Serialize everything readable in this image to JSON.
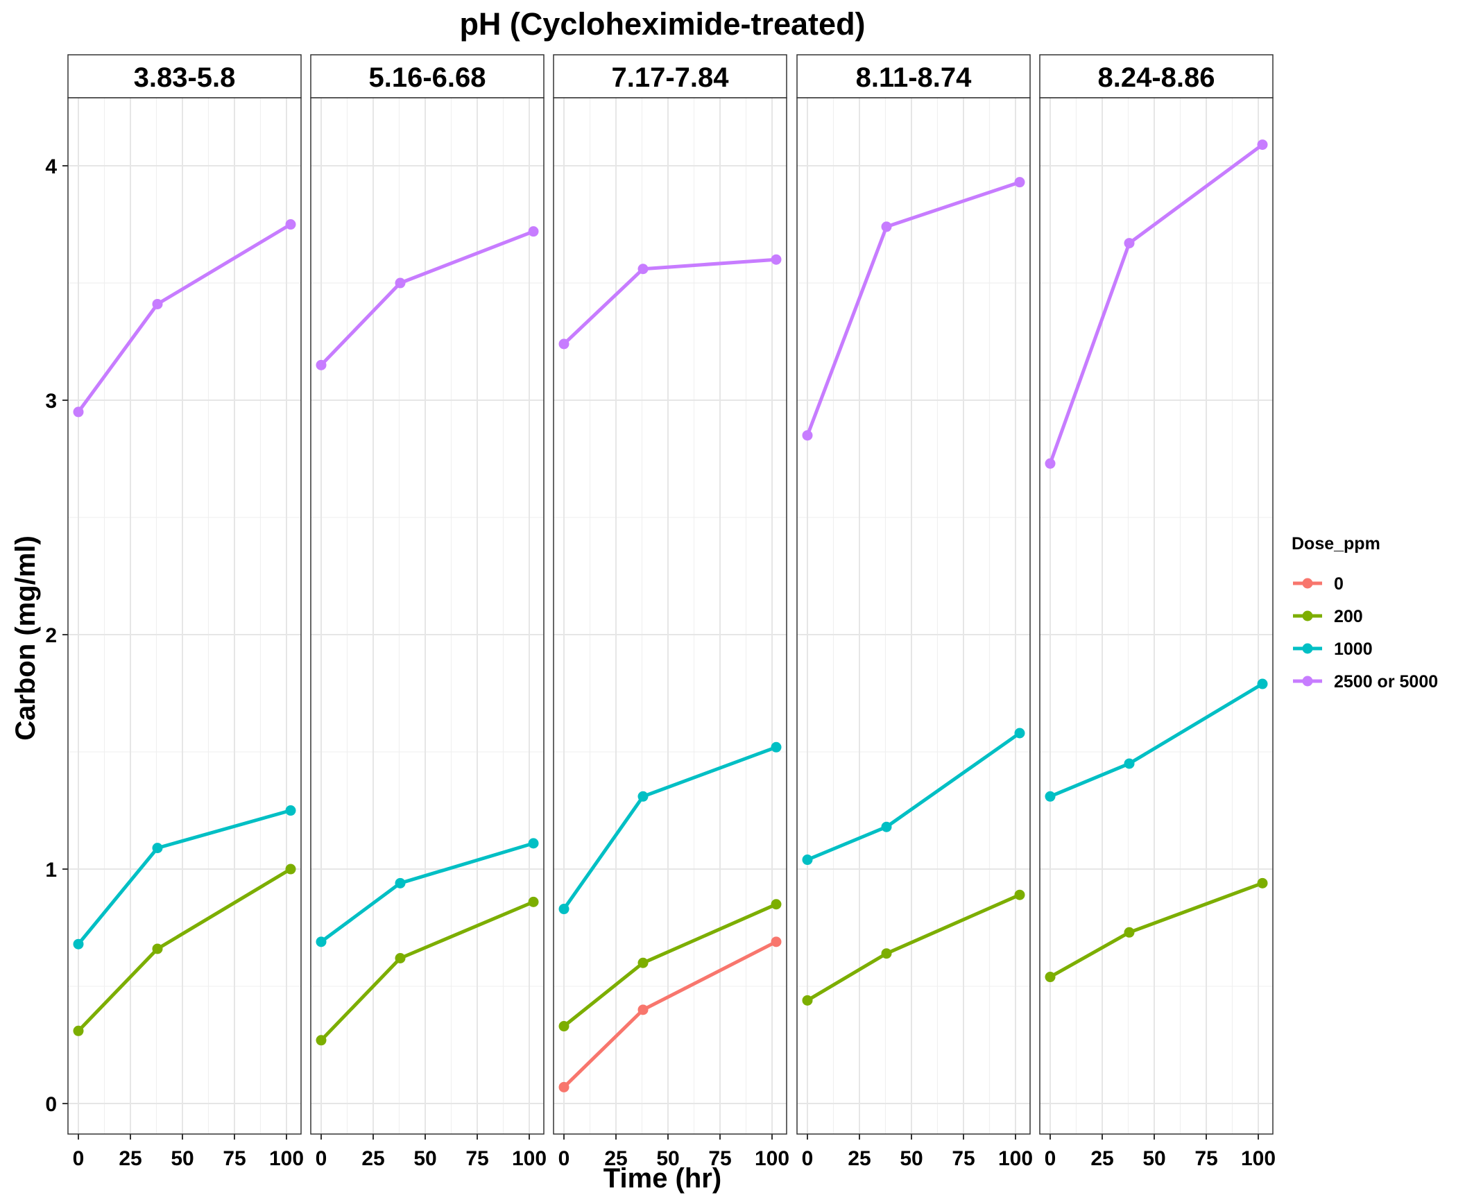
{
  "chart_data": {
    "type": "line",
    "title": "pH (Cycloheximide-treated)",
    "xlabel": "Time (hr)",
    "ylabel": "Carbon (mg/ml)",
    "xlim": [
      -5,
      107
    ],
    "ylim": [
      -0.13,
      4.29
    ],
    "x_ticks": [
      0,
      25,
      50,
      75,
      100
    ],
    "x_tick_labels": [
      "0",
      "25",
      "50",
      "75",
      "100"
    ],
    "y_ticks": [
      0,
      1,
      2,
      3,
      4
    ],
    "y_tick_labels": [
      "0",
      "1",
      "2",
      "3",
      "4"
    ],
    "grid": true,
    "legend": {
      "title": "Dose_ppm",
      "position": "right",
      "entries": [
        {
          "label": "0",
          "color": "#F8766D"
        },
        {
          "label": "200",
          "color": "#7CAE00"
        },
        {
          "label": "1000",
          "color": "#00BFC4"
        },
        {
          "label": "2500 or 5000",
          "color": "#C77CFF"
        }
      ]
    },
    "panels": [
      {
        "label": "3.83-5.8",
        "series": [
          {
            "name": "200",
            "x": [
              0,
              38,
              102
            ],
            "y": [
              0.31,
              0.66,
              1.0
            ]
          },
          {
            "name": "1000",
            "x": [
              0,
              38,
              102
            ],
            "y": [
              0.68,
              1.09,
              1.25
            ]
          },
          {
            "name": "2500 or 5000",
            "x": [
              0,
              38,
              102
            ],
            "y": [
              2.95,
              3.41,
              3.75
            ]
          }
        ]
      },
      {
        "label": "5.16-6.68",
        "series": [
          {
            "name": "200",
            "x": [
              0,
              38,
              102
            ],
            "y": [
              0.27,
              0.62,
              0.86
            ]
          },
          {
            "name": "1000",
            "x": [
              0,
              38,
              102
            ],
            "y": [
              0.69,
              0.94,
              1.11
            ]
          },
          {
            "name": "2500 or 5000",
            "x": [
              0,
              38,
              102
            ],
            "y": [
              3.15,
              3.5,
              3.72
            ]
          }
        ]
      },
      {
        "label": "7.17-7.84",
        "series": [
          {
            "name": "0",
            "x": [
              0,
              38,
              102
            ],
            "y": [
              0.07,
              0.4,
              0.69
            ]
          },
          {
            "name": "200",
            "x": [
              0,
              38,
              102
            ],
            "y": [
              0.33,
              0.6,
              0.85
            ]
          },
          {
            "name": "1000",
            "x": [
              0,
              38,
              102
            ],
            "y": [
              0.83,
              1.31,
              1.52
            ]
          },
          {
            "name": "2500 or 5000",
            "x": [
              0,
              38,
              102
            ],
            "y": [
              3.24,
              3.56,
              3.6
            ]
          }
        ]
      },
      {
        "label": "8.11-8.74",
        "series": [
          {
            "name": "200",
            "x": [
              0,
              38,
              102
            ],
            "y": [
              0.44,
              0.64,
              0.89
            ]
          },
          {
            "name": "1000",
            "x": [
              0,
              38,
              102
            ],
            "y": [
              1.04,
              1.18,
              1.58
            ]
          },
          {
            "name": "2500 or 5000",
            "x": [
              0,
              38,
              102
            ],
            "y": [
              2.85,
              3.74,
              3.93
            ]
          }
        ]
      },
      {
        "label": "8.24-8.86",
        "series": [
          {
            "name": "200",
            "x": [
              0,
              38,
              102
            ],
            "y": [
              0.54,
              0.73,
              0.94
            ]
          },
          {
            "name": "1000",
            "x": [
              0,
              38,
              102
            ],
            "y": [
              1.31,
              1.45,
              1.79
            ]
          },
          {
            "name": "2500 or 5000",
            "x": [
              0,
              38,
              102
            ],
            "y": [
              2.73,
              3.67,
              4.09
            ]
          }
        ]
      }
    ]
  }
}
